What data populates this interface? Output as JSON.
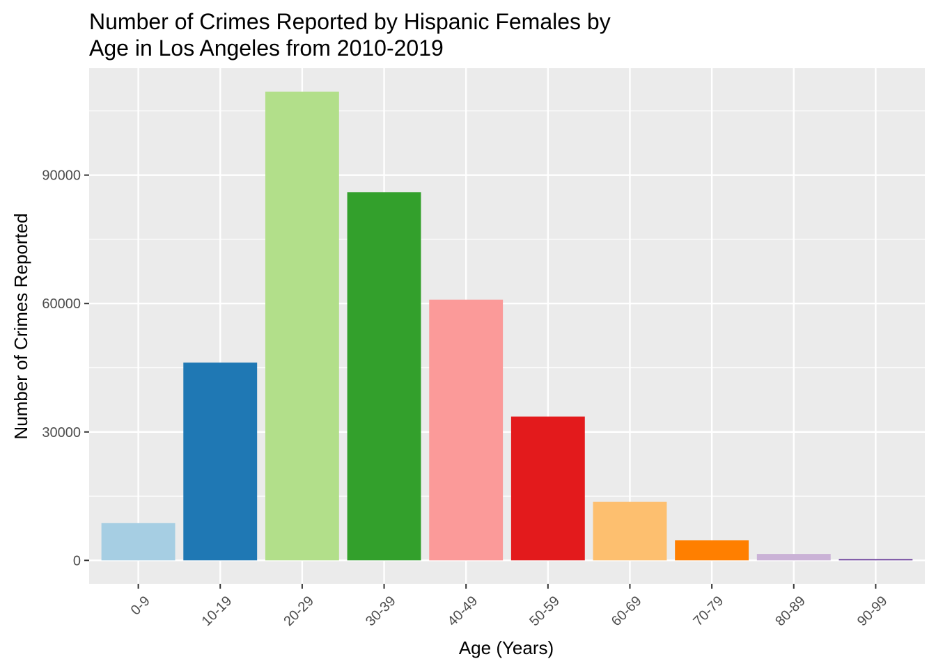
{
  "chart_data": {
    "type": "bar",
    "title_lines": [
      "Number of Crimes Reported by Hispanic Females by",
      "Age in Los Angeles from 2010-2019"
    ],
    "xlabel": "Age (Years)",
    "ylabel": "Number of Crimes Reported",
    "categories": [
      "0-9",
      "10-19",
      "20-29",
      "30-39",
      "40-49",
      "50-59",
      "60-69",
      "70-79",
      "80-89",
      "90-99"
    ],
    "values": [
      8700,
      46200,
      109500,
      86000,
      60900,
      33600,
      13700,
      4700,
      1500,
      300
    ],
    "colors": [
      "#A6CEE3",
      "#1F78B4",
      "#B2DF8A",
      "#33A02C",
      "#FB9A99",
      "#E31A1C",
      "#FDBF6F",
      "#FF7F00",
      "#CAB2D6",
      "#6A3D9A"
    ],
    "yticks": [
      0,
      30000,
      60000,
      90000
    ],
    "ylim": [
      -5475,
      114975
    ],
    "grid": true,
    "legend": "none",
    "panel_background": "#EBEBEB",
    "grid_color": "#FFFFFF"
  }
}
